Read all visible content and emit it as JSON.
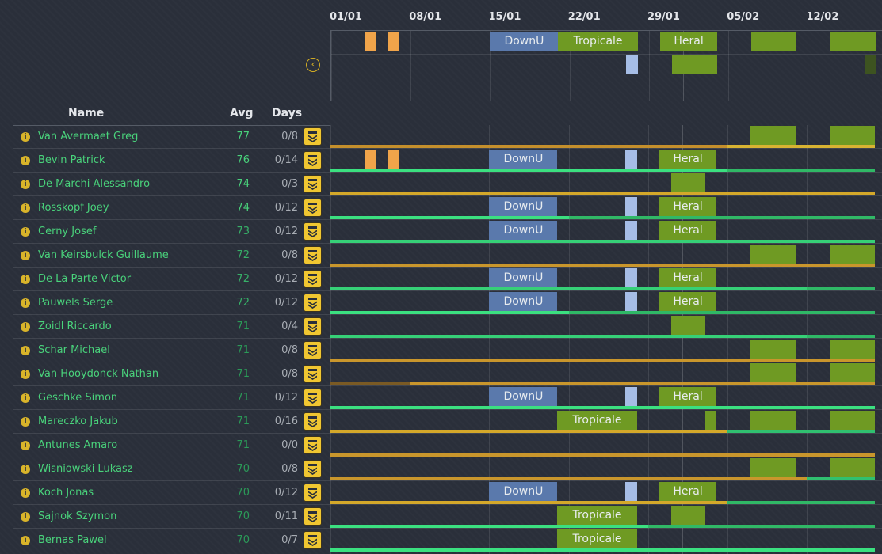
{
  "dates": [
    "01/01",
    "08/01",
    "15/01",
    "22/01",
    "29/01",
    "05/02",
    "12/02"
  ],
  "overview": {
    "collapse_icon": "chevron-left-icon",
    "rows": [
      [
        {
          "start": 3,
          "end": 4,
          "color": "orange",
          "label": ""
        },
        {
          "start": 5,
          "end": 6,
          "color": "orange",
          "label": ""
        },
        {
          "start": 14,
          "end": 20,
          "color": "blue",
          "label": "DownU"
        },
        {
          "start": 20,
          "end": 27,
          "color": "green",
          "label": "Tropicale"
        },
        {
          "start": 29,
          "end": 34,
          "color": "green",
          "label": "Heral"
        },
        {
          "start": 37,
          "end": 41,
          "color": "green",
          "label": ""
        },
        {
          "start": 44,
          "end": 48,
          "color": "green",
          "label": ""
        }
      ],
      [
        {
          "start": 26,
          "end": 27,
          "color": "lightblue",
          "label": ""
        },
        {
          "start": 30,
          "end": 34,
          "color": "green",
          "label": ""
        },
        {
          "start": 47,
          "end": 48,
          "color": "dgreen",
          "label": ""
        }
      ],
      []
    ]
  },
  "columns": {
    "name": "Name",
    "avg": "Avg",
    "days": "Days"
  },
  "colors": {
    "bright": "#49d27b",
    "mid": "#37b068",
    "dim": "#2b9a58",
    "gold": "#d4a82a",
    "green": "#37d77c"
  },
  "riders": [
    {
      "name": "Van Avermaet Greg",
      "avg": "77",
      "days": "0/8",
      "blocks": [
        {
          "start": 37,
          "end": 41,
          "color": "green",
          "label": ""
        },
        {
          "start": 44,
          "end": 48,
          "color": "green",
          "label": ""
        }
      ],
      "form": [
        {
          "start": 0,
          "end": 35,
          "color": "#c48f2c"
        },
        {
          "start": 35,
          "end": 48,
          "color": "#d8b332"
        }
      ]
    },
    {
      "name": "Bevin Patrick",
      "avg": "76",
      "days": "0/14",
      "blocks": [
        {
          "start": 3,
          "end": 4,
          "color": "orange",
          "label": ""
        },
        {
          "start": 5,
          "end": 6,
          "color": "orange",
          "label": ""
        },
        {
          "start": 14,
          "end": 20,
          "color": "blue",
          "label": "DownU"
        },
        {
          "start": 26,
          "end": 27,
          "color": "lightblue",
          "label": ""
        },
        {
          "start": 29,
          "end": 34,
          "color": "green",
          "label": "Heral"
        }
      ],
      "form": [
        {
          "start": 0,
          "end": 35,
          "color": "#3be080"
        },
        {
          "start": 35,
          "end": 48,
          "color": "#30b866"
        }
      ]
    },
    {
      "name": "De Marchi Alessandro",
      "avg": "74",
      "days": "0/3",
      "blocks": [
        {
          "start": 30,
          "end": 33,
          "color": "green",
          "label": ""
        }
      ],
      "form": [
        {
          "start": 0,
          "end": 48,
          "color": "#d4a82a"
        }
      ]
    },
    {
      "name": "Rosskopf Joey",
      "avg": "74",
      "days": "0/12",
      "blocks": [
        {
          "start": 14,
          "end": 20,
          "color": "blue",
          "label": "DownU"
        },
        {
          "start": 26,
          "end": 27,
          "color": "lightblue",
          "label": ""
        },
        {
          "start": 29,
          "end": 34,
          "color": "green",
          "label": "Heral"
        }
      ],
      "form": [
        {
          "start": 0,
          "end": 21,
          "color": "#3be080"
        },
        {
          "start": 21,
          "end": 48,
          "color": "#30b866"
        }
      ]
    },
    {
      "name": "Cerny Josef",
      "avg": "73",
      "days": "0/12",
      "blocks": [
        {
          "start": 14,
          "end": 20,
          "color": "blue",
          "label": "DownU"
        },
        {
          "start": 26,
          "end": 27,
          "color": "lightblue",
          "label": ""
        },
        {
          "start": 29,
          "end": 34,
          "color": "green",
          "label": "Heral"
        }
      ],
      "form": [
        {
          "start": 0,
          "end": 48,
          "color": "#36d077"
        }
      ]
    },
    {
      "name": "Van Keirsbulck Guillaume",
      "avg": "72",
      "days": "0/8",
      "blocks": [
        {
          "start": 37,
          "end": 41,
          "color": "green",
          "label": ""
        },
        {
          "start": 44,
          "end": 48,
          "color": "green",
          "label": ""
        }
      ],
      "form": [
        {
          "start": 0,
          "end": 48,
          "color": "#c9962c"
        }
      ]
    },
    {
      "name": "De La Parte Victor",
      "avg": "72",
      "days": "0/12",
      "blocks": [
        {
          "start": 14,
          "end": 20,
          "color": "blue",
          "label": "DownU"
        },
        {
          "start": 26,
          "end": 27,
          "color": "lightblue",
          "label": ""
        },
        {
          "start": 29,
          "end": 34,
          "color": "green",
          "label": "Heral"
        }
      ],
      "form": [
        {
          "start": 0,
          "end": 42,
          "color": "#36d077"
        },
        {
          "start": 42,
          "end": 48,
          "color": "#2fb866"
        }
      ]
    },
    {
      "name": "Pauwels Serge",
      "avg": "72",
      "days": "0/12",
      "blocks": [
        {
          "start": 14,
          "end": 20,
          "color": "blue",
          "label": "DownU"
        },
        {
          "start": 26,
          "end": 27,
          "color": "lightblue",
          "label": ""
        },
        {
          "start": 29,
          "end": 34,
          "color": "green",
          "label": "Heral"
        }
      ],
      "form": [
        {
          "start": 0,
          "end": 21,
          "color": "#3be080"
        },
        {
          "start": 21,
          "end": 48,
          "color": "#2fb866"
        }
      ]
    },
    {
      "name": "Zoidl Riccardo",
      "avg": "71",
      "days": "0/4",
      "blocks": [
        {
          "start": 30,
          "end": 33,
          "color": "green",
          "label": ""
        }
      ],
      "form": [
        {
          "start": 0,
          "end": 42,
          "color": "#36d077"
        },
        {
          "start": 42,
          "end": 48,
          "color": "#2fb866"
        }
      ]
    },
    {
      "name": "Schar Michael",
      "avg": "71",
      "days": "0/8",
      "blocks": [
        {
          "start": 37,
          "end": 41,
          "color": "green",
          "label": ""
        },
        {
          "start": 44,
          "end": 48,
          "color": "green",
          "label": ""
        }
      ],
      "form": [
        {
          "start": 0,
          "end": 48,
          "color": "#c9962c"
        }
      ]
    },
    {
      "name": "Van Hooydonck Nathan",
      "avg": "71",
      "days": "0/8",
      "blocks": [
        {
          "start": 37,
          "end": 41,
          "color": "green",
          "label": ""
        },
        {
          "start": 44,
          "end": 48,
          "color": "green",
          "label": ""
        }
      ],
      "form": [
        {
          "start": 0,
          "end": 7,
          "color": "#7a5a24"
        },
        {
          "start": 7,
          "end": 48,
          "color": "#c9962c"
        }
      ]
    },
    {
      "name": "Geschke Simon",
      "avg": "71",
      "days": "0/12",
      "blocks": [
        {
          "start": 14,
          "end": 20,
          "color": "blue",
          "label": "DownU"
        },
        {
          "start": 26,
          "end": 27,
          "color": "lightblue",
          "label": ""
        },
        {
          "start": 29,
          "end": 34,
          "color": "green",
          "label": "Heral"
        }
      ],
      "form": [
        {
          "start": 0,
          "end": 48,
          "color": "#3be080"
        }
      ]
    },
    {
      "name": "Mareczko Jakub",
      "avg": "71",
      "days": "0/16",
      "blocks": [
        {
          "start": 20,
          "end": 27,
          "color": "green",
          "label": "Tropicale"
        },
        {
          "start": 33,
          "end": 34,
          "color": "green",
          "label": ""
        },
        {
          "start": 37,
          "end": 41,
          "color": "green",
          "label": ""
        },
        {
          "start": 44,
          "end": 48,
          "color": "green",
          "label": ""
        }
      ],
      "form": [
        {
          "start": 0,
          "end": 35,
          "color": "#d4a82a"
        },
        {
          "start": 35,
          "end": 48,
          "color": "#30c070"
        }
      ]
    },
    {
      "name": "Antunes Amaro",
      "avg": "71",
      "days": "0/0",
      "blocks": [],
      "form": [
        {
          "start": 0,
          "end": 48,
          "color": "#c9962c"
        }
      ]
    },
    {
      "name": "Wisniowski Lukasz",
      "avg": "70",
      "days": "0/8",
      "blocks": [
        {
          "start": 37,
          "end": 41,
          "color": "green",
          "label": ""
        },
        {
          "start": 44,
          "end": 48,
          "color": "green",
          "label": ""
        }
      ],
      "form": [
        {
          "start": 0,
          "end": 42,
          "color": "#c9962c"
        },
        {
          "start": 42,
          "end": 48,
          "color": "#30c070"
        }
      ]
    },
    {
      "name": "Koch Jonas",
      "avg": "70",
      "days": "0/12",
      "blocks": [
        {
          "start": 14,
          "end": 20,
          "color": "blue",
          "label": "DownU"
        },
        {
          "start": 26,
          "end": 27,
          "color": "lightblue",
          "label": ""
        },
        {
          "start": 29,
          "end": 34,
          "color": "green",
          "label": "Heral"
        }
      ],
      "form": [
        {
          "start": 0,
          "end": 35,
          "color": "#d4a82a"
        },
        {
          "start": 35,
          "end": 48,
          "color": "#30b866"
        }
      ]
    },
    {
      "name": "Sajnok Szymon",
      "avg": "70",
      "days": "0/11",
      "blocks": [
        {
          "start": 20,
          "end": 27,
          "color": "green",
          "label": "Tropicale"
        },
        {
          "start": 30,
          "end": 33,
          "color": "green",
          "label": ""
        }
      ],
      "form": [
        {
          "start": 0,
          "end": 28,
          "color": "#3be080"
        },
        {
          "start": 28,
          "end": 48,
          "color": "#30b866"
        }
      ]
    },
    {
      "name": "Bernas Pawel",
      "avg": "70",
      "days": "0/7",
      "blocks": [
        {
          "start": 20,
          "end": 27,
          "color": "green",
          "label": "Tropicale"
        }
      ],
      "form": [
        {
          "start": 0,
          "end": 48,
          "color": "#3be080"
        }
      ]
    }
  ]
}
